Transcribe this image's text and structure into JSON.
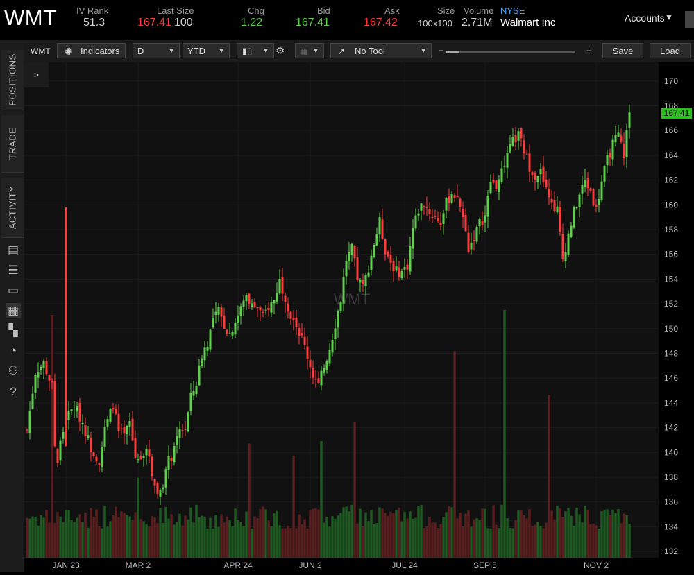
{
  "quote": {
    "symbol": "WMT",
    "iv_rank_label": "IV Rank",
    "iv_rank": "51.3",
    "last_size_label": "Last Size",
    "last_price": "167.41",
    "last_size": "100",
    "chg_label": "Chg",
    "chg": "1.22",
    "bid_label": "Bid",
    "bid": "167.41",
    "ask_label": "Ask",
    "ask": "167.42",
    "size_label": "Size",
    "size": "100x100",
    "volume_label": "Volume",
    "volume": "2.71M",
    "exchange": "NYSE",
    "company": "Walmart Inc"
  },
  "accounts_label": "Accounts",
  "left_tabs": [
    "POSITIONS",
    "TRADE",
    "ACTIVITY"
  ],
  "left_icons": [
    "page-icon",
    "list-icon",
    "tv-icon",
    "chart-icon",
    "grid-icon",
    "gauge-icon",
    "people-icon",
    "help-icon"
  ],
  "toolbar": {
    "symbol": "WMT",
    "indicators_label": "Indicators",
    "interval": "D",
    "range": "YTD",
    "tool_label": "No Tool",
    "zoom_out": "−",
    "zoom_in": "+",
    "zoom_level": 0.1,
    "save_label": "Save",
    "load_label": "Load"
  },
  "collapse_label": ">",
  "colors": {
    "up": "#5ed14a",
    "down": "#ff3b3b",
    "up_vol": "#1f5a22",
    "down_vol": "#5a1e1e",
    "badge": "#2dbf1f"
  },
  "chart_data": {
    "type": "candlestick",
    "symbol_watermark": "WMT",
    "price_axis_ticks": [
      132,
      134,
      136,
      138,
      140,
      142,
      144,
      146,
      148,
      150,
      152,
      154,
      156,
      158,
      160,
      162,
      164,
      166,
      168,
      170
    ],
    "ylim": [
      131.5,
      171.5
    ],
    "x_tick_labels": [
      {
        "label": "JAN 23",
        "index": 14
      },
      {
        "label": "MAR 2",
        "index": 40
      },
      {
        "label": "APR 24",
        "index": 76
      },
      {
        "label": "JUN 2",
        "index": 102
      },
      {
        "label": "JUL 24",
        "index": 136
      },
      {
        "label": "SEP 5",
        "index": 165
      },
      {
        "label": "NOV 2",
        "index": 205
      }
    ],
    "last_price_badge": "167.41",
    "close_path": [
      [
        0,
        141.8
      ],
      [
        3,
        146.5
      ],
      [
        6,
        147.2
      ],
      [
        9,
        145.3
      ],
      [
        10,
        140.6
      ],
      [
        11,
        139.2
      ],
      [
        12,
        140.8
      ],
      [
        14,
        142.6
      ],
      [
        17,
        143.8
      ],
      [
        20,
        142.4
      ],
      [
        23,
        140.4
      ],
      [
        26,
        139.3
      ],
      [
        28,
        141.8
      ],
      [
        31,
        143.9
      ],
      [
        33,
        141.6
      ],
      [
        35,
        141.3
      ],
      [
        37,
        142.4
      ],
      [
        39,
        139.6
      ],
      [
        42,
        140.0
      ],
      [
        44,
        139.8
      ],
      [
        45,
        138.4
      ],
      [
        47,
        136.6
      ],
      [
        49,
        137.6
      ],
      [
        51,
        139.3
      ],
      [
        53,
        140.1
      ],
      [
        55,
        141.8
      ],
      [
        57,
        141.9
      ],
      [
        59,
        144.4
      ],
      [
        61,
        145.6
      ],
      [
        63,
        147.9
      ],
      [
        65,
        148.9
      ],
      [
        67,
        150.7
      ],
      [
        69,
        151.4
      ],
      [
        71,
        150.3
      ],
      [
        73,
        149.6
      ],
      [
        75,
        150.6
      ],
      [
        77,
        151.6
      ],
      [
        79,
        152.7
      ],
      [
        81,
        151.8
      ],
      [
        83,
        151.7
      ],
      [
        85,
        150.9
      ],
      [
        87,
        151.8
      ],
      [
        89,
        152.3
      ],
      [
        91,
        153.9
      ],
      [
        93,
        152.6
      ],
      [
        95,
        151.0
      ],
      [
        97,
        150.3
      ],
      [
        99,
        149.2
      ],
      [
        101,
        147.8
      ],
      [
        103,
        146.3
      ],
      [
        105,
        145.4
      ],
      [
        107,
        146.9
      ],
      [
        109,
        148.4
      ],
      [
        111,
        150.4
      ],
      [
        113,
        152.4
      ],
      [
        115,
        155.6
      ],
      [
        117,
        156.4
      ],
      [
        119,
        154.1
      ],
      [
        121,
        153.3
      ],
      [
        123,
        155.0
      ],
      [
        125,
        156.9
      ],
      [
        127,
        158.6
      ],
      [
        129,
        156.4
      ],
      [
        131,
        155.4
      ],
      [
        133,
        154.6
      ],
      [
        135,
        154.6
      ],
      [
        137,
        155.1
      ],
      [
        139,
        158.1
      ],
      [
        141,
        159.6
      ],
      [
        143,
        160.2
      ],
      [
        145,
        159.4
      ],
      [
        147,
        159.0
      ],
      [
        149,
        158.6
      ],
      [
        151,
        160.1
      ],
      [
        153,
        161.0
      ],
      [
        155,
        160.6
      ],
      [
        157,
        159.0
      ],
      [
        159,
        156.5
      ],
      [
        161,
        157.4
      ],
      [
        163,
        158.5
      ],
      [
        165,
        159.1
      ],
      [
        167,
        161.9
      ],
      [
        169,
        161.5
      ],
      [
        171,
        162.6
      ],
      [
        173,
        163.9
      ],
      [
        175,
        165.1
      ],
      [
        177,
        165.6
      ],
      [
        179,
        164.4
      ],
      [
        181,
        163.1
      ],
      [
        183,
        162.4
      ],
      [
        185,
        162.6
      ],
      [
        187,
        161.1
      ],
      [
        189,
        160.1
      ],
      [
        191,
        159.6
      ],
      [
        193,
        155.6
      ],
      [
        195,
        157.6
      ],
      [
        197,
        159.4
      ],
      [
        199,
        160.8
      ],
      [
        201,
        161.9
      ],
      [
        203,
        161.1
      ],
      [
        205,
        159.6
      ],
      [
        207,
        161.9
      ],
      [
        209,
        163.6
      ],
      [
        211,
        164.9
      ],
      [
        213,
        165.6
      ],
      [
        215,
        164.1
      ],
      [
        216,
        165.8
      ],
      [
        217,
        167.4
      ]
    ],
    "volume_spikes": [
      [
        9,
        1.0
      ],
      [
        40,
        0.33
      ],
      [
        80,
        0.47
      ],
      [
        96,
        0.42
      ],
      [
        106,
        0.48
      ],
      [
        118,
        0.56
      ],
      [
        154,
        0.85
      ],
      [
        172,
        1.02
      ],
      [
        188,
        0.67
      ]
    ]
  }
}
